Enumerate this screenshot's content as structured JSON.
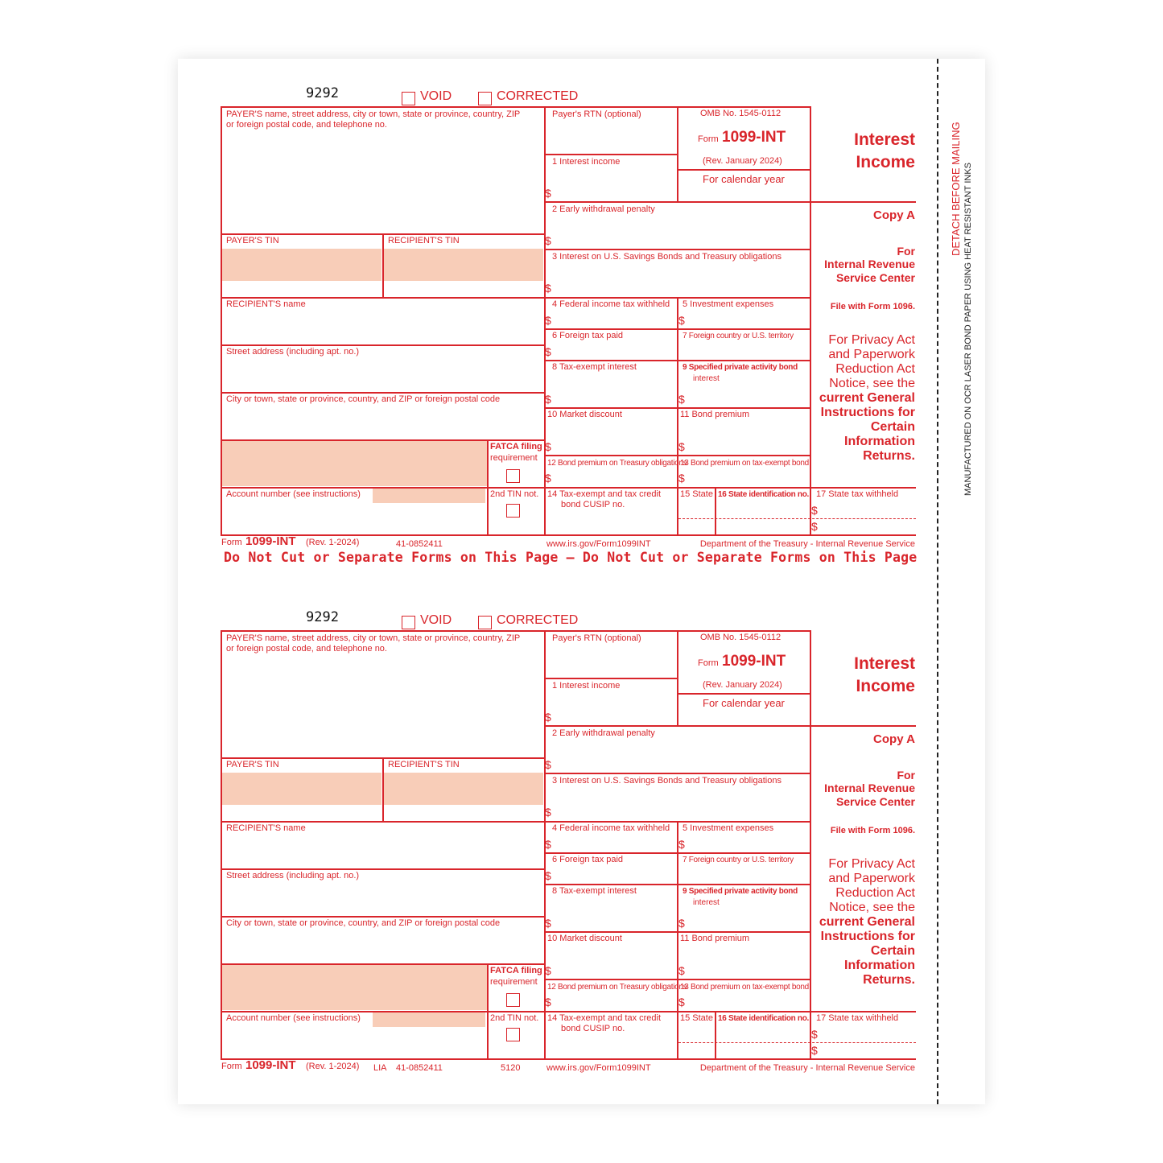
{
  "form": {
    "ocr_code": "9292",
    "void": "VOID",
    "corrected": "CORRECTED",
    "payer_block": "PAYER'S name, street address, city or town, state or province, country, ZIP",
    "payer_block_2": "or foreign postal code, and telephone no.",
    "payer_tin": "PAYER'S TIN",
    "recipient_tin": "RECIPIENT'S TIN",
    "recipient_name": "RECIPIENT'S name",
    "street": "Street address (including apt. no.)",
    "city": "City or town, state or province, country, and ZIP or foreign postal code",
    "fatca_1": "FATCA filing",
    "fatca_2": "requirement",
    "account": "Account number (see instructions)",
    "second_tin": "2nd TIN not.",
    "rtn": "Payer's RTN (optional)",
    "omb": "OMB No. 1545-0112",
    "form_word": "Form",
    "form_number": "1099-INT",
    "rev": "(Rev. January 2024)",
    "calendar_year": "For calendar year",
    "box1": "1 Interest income",
    "box2": "2 Early withdrawal penalty",
    "box3": "3 Interest on U.S. Savings Bonds and Treasury obligations",
    "box4": "4 Federal income tax withheld",
    "box5": "5 Investment expenses",
    "box6": "6 Foreign tax paid",
    "box7": "7 Foreign country or U.S. territory",
    "box8": "8 Tax-exempt interest",
    "box9": "9 Specified private activity bond",
    "box9b": "interest",
    "box10": "10 Market discount",
    "box11": "11 Bond premium",
    "box12": "12 Bond premium on Treasury obligations",
    "box13": "13 Bond premium on tax-exempt bond",
    "box14": "14 Tax-exempt and tax credit",
    "box14b": "bond CUSIP no.",
    "box15": "15 State",
    "box16": "16 State identification no.",
    "box17": "17 State tax withheld",
    "dollar": "$",
    "title_1": "Interest",
    "title_2": "Income",
    "copy": "Copy A",
    "for_1": "For",
    "for_2": "Internal Revenue",
    "for_3": "Service Center",
    "file_with": "File with Form 1096.",
    "privacy": [
      "For Privacy Act",
      "and Paperwork",
      "Reduction Act",
      "Notice, see the"
    ],
    "privacy_bold": [
      "current General",
      "Instructions for",
      "Certain",
      "Information",
      "Returns."
    ],
    "footer_form": "Form",
    "footer_number": "1099-INT",
    "footer_rev": "(Rev. 1-2024)",
    "footer_url": "www.irs.gov/Form1099INT",
    "footer_dept": "Department of the Treasury - Internal Revenue Service"
  },
  "forms": [
    {
      "footer_code": "41-0852411",
      "footer_lia": "",
      "footer_cat": "",
      "separator": "Do Not Cut or Separate Forms on This Page  —  Do Not Cut or Separate Forms on This Page"
    },
    {
      "footer_code": "41-0852411",
      "footer_lia": "LIA",
      "footer_cat": "5120",
      "separator": ""
    }
  ],
  "side": {
    "detach": "DETACH BEFORE MAILING",
    "manufactured": "MANUFACTURED ON OCR LASER BOND PAPER USING HEAT RESISTANT INKS"
  },
  "colors": {
    "ink": "#d9252b",
    "shade": "#f8cdb8"
  }
}
